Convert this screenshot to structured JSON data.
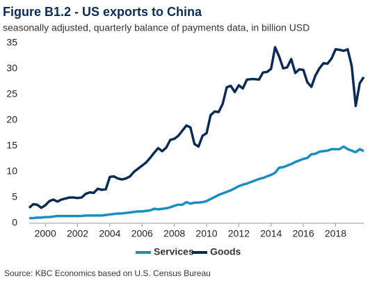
{
  "chart_data": {
    "type": "line",
    "title": "Figure B1.2 - US exports to China",
    "subtitle": "seasonally adjusted, quarterly balance of payments data, in billion USD",
    "source": "Source: KBC Economics based on U.S. Census Bureau",
    "x": [
      1999,
      1999.25,
      1999.5,
      1999.75,
      2000,
      2000.25,
      2000.5,
      2000.75,
      2001,
      2001.25,
      2001.5,
      2001.75,
      2002,
      2002.25,
      2002.5,
      2002.75,
      2003,
      2003.25,
      2003.5,
      2003.75,
      2004,
      2004.25,
      2004.5,
      2004.75,
      2005,
      2005.25,
      2005.5,
      2005.75,
      2006,
      2006.25,
      2006.5,
      2006.75,
      2007,
      2007.25,
      2007.5,
      2007.75,
      2008,
      2008.25,
      2008.5,
      2008.75,
      2009,
      2009.25,
      2009.5,
      2009.75,
      2010,
      2010.25,
      2010.5,
      2010.75,
      2011,
      2011.25,
      2011.5,
      2011.75,
      2012,
      2012.25,
      2012.5,
      2012.75,
      2013,
      2013.25,
      2013.5,
      2013.75,
      2014,
      2014.25,
      2014.5,
      2014.75,
      2015,
      2015.25,
      2015.5,
      2015.75,
      2016,
      2016.25,
      2016.5,
      2016.75,
      2017,
      2017.25,
      2017.5,
      2017.75,
      2018,
      2018.25,
      2018.5,
      2018.75,
      2019,
      2019.25,
      2019.5,
      2019.75
    ],
    "series": [
      {
        "name": "Services",
        "color": "#1b8dbf",
        "values": [
          1.0,
          1.0,
          1.1,
          1.1,
          1.2,
          1.2,
          1.3,
          1.4,
          1.4,
          1.4,
          1.4,
          1.4,
          1.4,
          1.4,
          1.5,
          1.5,
          1.5,
          1.5,
          1.5,
          1.6,
          1.7,
          1.8,
          1.9,
          1.9,
          2.0,
          2.1,
          2.2,
          2.3,
          2.3,
          2.4,
          2.5,
          2.8,
          2.7,
          2.8,
          2.9,
          3.1,
          3.4,
          3.6,
          3.6,
          4.1,
          3.8,
          4.0,
          4.0,
          4.1,
          4.3,
          4.7,
          5.1,
          5.5,
          5.8,
          6.1,
          6.4,
          6.8,
          7.2,
          7.5,
          7.7,
          8.0,
          8.3,
          8.6,
          8.8,
          9.1,
          9.4,
          9.8,
          10.8,
          10.9,
          11.2,
          11.5,
          11.9,
          12.2,
          12.5,
          12.7,
          13.4,
          13.5,
          13.9,
          14.0,
          14.1,
          14.4,
          14.4,
          14.4,
          14.9,
          14.4,
          14.1,
          13.8,
          14.4,
          14.0
        ]
      },
      {
        "name": "Goods",
        "color": "#0d2b52",
        "values": [
          3.0,
          3.7,
          3.6,
          3.0,
          3.5,
          4.3,
          4.6,
          4.2,
          4.6,
          4.8,
          5.0,
          5.0,
          4.9,
          5.0,
          5.7,
          6.0,
          5.9,
          6.7,
          6.5,
          6.6,
          9.0,
          9.1,
          8.7,
          8.5,
          8.7,
          9.1,
          10.0,
          10.6,
          11.2,
          11.8,
          12.7,
          13.7,
          14.6,
          14.0,
          14.7,
          16.2,
          16.4,
          17.0,
          18.0,
          19.0,
          18.6,
          15.4,
          14.9,
          17.0,
          17.5,
          21.0,
          21.7,
          21.6,
          23.2,
          26.4,
          26.7,
          25.5,
          26.8,
          26.2,
          27.9,
          28.0,
          28.0,
          27.9,
          29.3,
          29.4,
          30.0,
          34.2,
          32.4,
          30.1,
          30.3,
          31.9,
          29.2,
          29.9,
          29.8,
          27.4,
          26.5,
          28.7,
          30.1,
          31.1,
          31.0,
          32.0,
          33.8,
          33.7,
          33.5,
          33.8,
          30.6,
          22.8,
          27.2,
          28.4
        ]
      }
    ],
    "xlim": [
      1999,
      2019.75
    ],
    "xticks": [
      2000,
      2002,
      2004,
      2006,
      2008,
      2010,
      2012,
      2014,
      2016,
      2018
    ],
    "ylim": [
      0,
      35
    ],
    "yticks": [
      0,
      5,
      10,
      15,
      20,
      25,
      30,
      35
    ],
    "grid": false,
    "legend": "bottom"
  }
}
